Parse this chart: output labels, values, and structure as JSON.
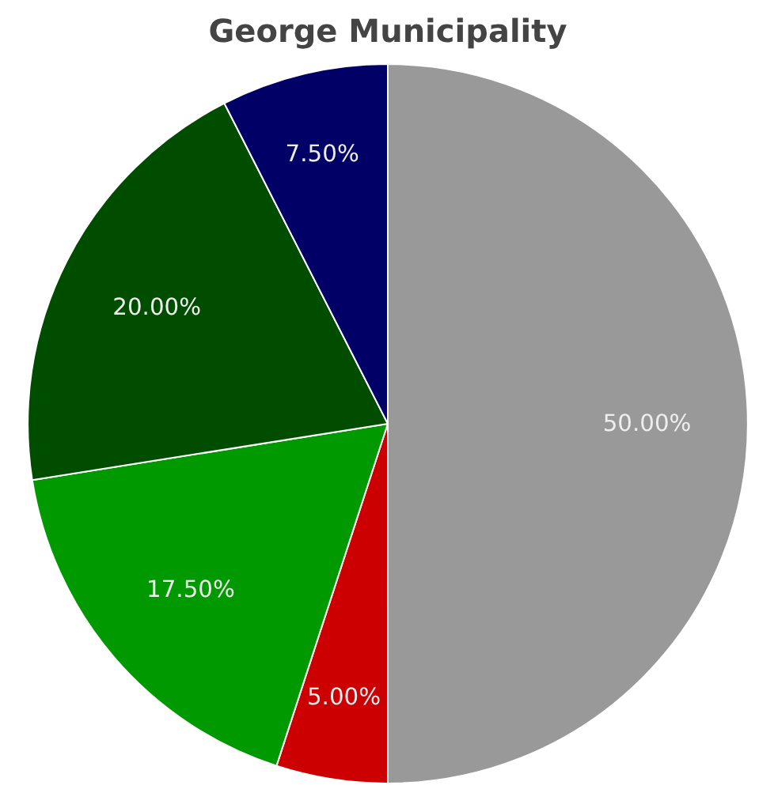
{
  "chart_data": {
    "type": "pie",
    "title": "George Municipality",
    "categories": [
      null,
      null,
      null,
      null,
      null
    ],
    "values": [
      50,
      5,
      17.5,
      20,
      7.5
    ],
    "colors": [
      "#999999",
      "#cc0000",
      "#009900",
      "#004d00",
      "#000066"
    ],
    "value_labels": [
      "50.00%",
      "5.00%",
      "17.50%",
      "20.00%",
      "7.50%"
    ]
  }
}
